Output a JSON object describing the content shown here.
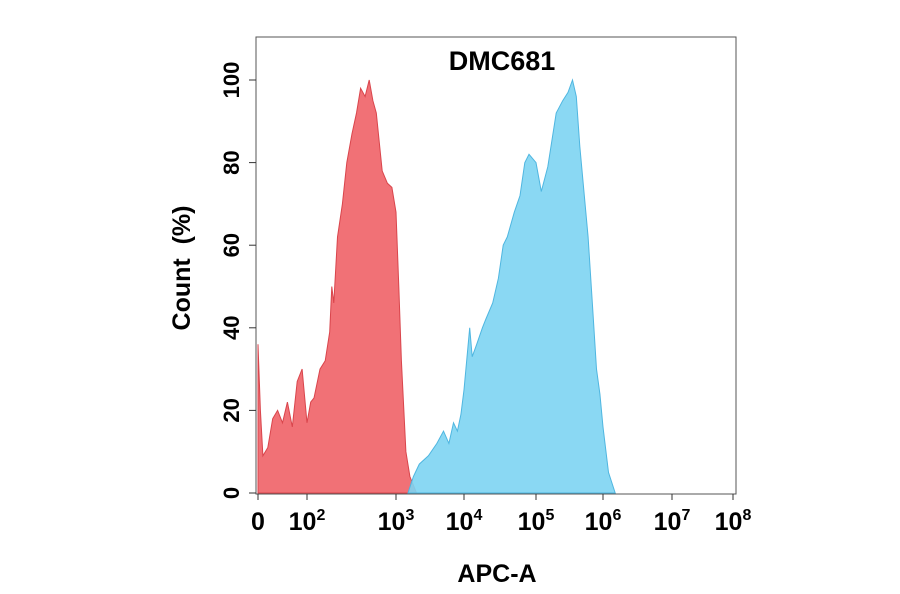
{
  "chart_data": {
    "type": "area",
    "title": "DMC681",
    "xlabel": "APC-A",
    "ylabel": "Count  (%)",
    "x_scale": "biexponential",
    "xlim": [
      0,
      100000000
    ],
    "ylim": [
      0,
      110
    ],
    "x_ticks": [
      {
        "value": 0,
        "base": "0",
        "exp": ""
      },
      {
        "value": 100,
        "base": "10",
        "exp": "2"
      },
      {
        "value": 1000,
        "base": "10",
        "exp": "3"
      },
      {
        "value": 10000,
        "base": "10",
        "exp": "4"
      },
      {
        "value": 100000,
        "base": "10",
        "exp": "5"
      },
      {
        "value": 1000000,
        "base": "10",
        "exp": "6"
      },
      {
        "value": 10000000,
        "base": "10",
        "exp": "7"
      },
      {
        "value": 100000000,
        "base": "10",
        "exp": "8"
      }
    ],
    "y_ticks": [
      "0",
      "20",
      "40",
      "60",
      "80",
      "100"
    ],
    "grid": false,
    "legend": "none",
    "series": [
      {
        "color": "#f0696f",
        "stroke": "#d9454c",
        "points": [
          [
            0,
            36
          ],
          [
            5,
            20
          ],
          [
            10,
            9
          ],
          [
            20,
            11
          ],
          [
            30,
            18
          ],
          [
            40,
            20
          ],
          [
            50,
            17
          ],
          [
            60,
            22
          ],
          [
            70,
            16
          ],
          [
            80,
            27
          ],
          [
            90,
            30
          ],
          [
            100,
            17
          ],
          [
            110,
            22
          ],
          [
            120,
            23
          ],
          [
            140,
            30
          ],
          [
            160,
            32
          ],
          [
            180,
            39
          ],
          [
            190,
            50
          ],
          [
            200,
            46
          ],
          [
            220,
            62
          ],
          [
            250,
            70
          ],
          [
            280,
            80
          ],
          [
            320,
            87
          ],
          [
            360,
            92
          ],
          [
            400,
            98
          ],
          [
            450,
            96
          ],
          [
            500,
            100
          ],
          [
            550,
            95
          ],
          [
            600,
            92
          ],
          [
            700,
            78
          ],
          [
            800,
            75
          ],
          [
            900,
            74
          ],
          [
            1000,
            68
          ],
          [
            1100,
            50
          ],
          [
            1200,
            32
          ],
          [
            1400,
            10
          ],
          [
            1600,
            4
          ],
          [
            2000,
            0
          ]
        ]
      },
      {
        "color": "#7dd4f2",
        "stroke": "#4fb6e0",
        "points": [
          [
            1500,
            0
          ],
          [
            1800,
            4
          ],
          [
            2200,
            7
          ],
          [
            3000,
            9
          ],
          [
            4000,
            12
          ],
          [
            5000,
            15
          ],
          [
            6000,
            12
          ],
          [
            7000,
            17
          ],
          [
            8000,
            15
          ],
          [
            9000,
            19
          ],
          [
            10000,
            25
          ],
          [
            12000,
            40
          ],
          [
            13000,
            33
          ],
          [
            15000,
            36
          ],
          [
            18000,
            40
          ],
          [
            20000,
            42
          ],
          [
            25000,
            46
          ],
          [
            30000,
            52
          ],
          [
            35000,
            60
          ],
          [
            40000,
            62
          ],
          [
            50000,
            68
          ],
          [
            60000,
            72
          ],
          [
            70000,
            80
          ],
          [
            80000,
            82
          ],
          [
            100000,
            80
          ],
          [
            120000,
            73
          ],
          [
            150000,
            79
          ],
          [
            200000,
            92
          ],
          [
            250000,
            95
          ],
          [
            300000,
            97
          ],
          [
            350000,
            100
          ],
          [
            400000,
            96
          ],
          [
            450000,
            84
          ],
          [
            500000,
            76
          ],
          [
            600000,
            62
          ],
          [
            700000,
            45
          ],
          [
            800000,
            30
          ],
          [
            900000,
            24
          ],
          [
            1000000,
            16
          ],
          [
            1200000,
            5
          ],
          [
            1500000,
            0
          ]
        ]
      }
    ]
  }
}
